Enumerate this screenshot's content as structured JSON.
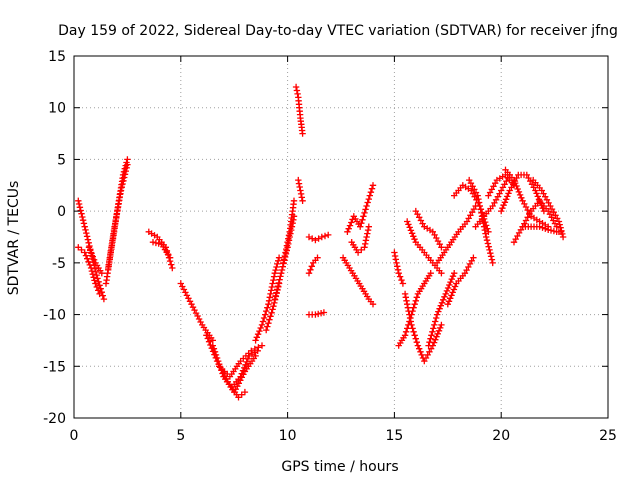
{
  "chart_data": {
    "type": "scatter",
    "title": "Day 159 of 2022, Sidereal Day-to-day VTEC variation (SDTVAR) for receiver jfng",
    "xlabel": "GPS time / hours",
    "ylabel": "SDTVAR / TECUs",
    "xlim": [
      0,
      25
    ],
    "ylim": [
      -20,
      15
    ],
    "xticks": [
      0,
      5,
      10,
      15,
      20,
      25
    ],
    "yticks": [
      -20,
      -15,
      -10,
      -5,
      0,
      5,
      10,
      15
    ],
    "xtick_labels": [
      "0",
      "5",
      "10",
      "15",
      "20",
      "25"
    ],
    "ytick_labels": [
      "-20",
      "-15",
      "-10",
      "-5",
      "0",
      "5",
      "10",
      "15"
    ],
    "grid": true,
    "marker": "plus",
    "color": "#ff0000",
    "tracks": [
      {
        "x": [
          0.2,
          0.5,
          0.8,
          1.1,
          1.4
        ],
        "y": [
          1.0,
          -1.5,
          -4.0,
          -6.5,
          -8.5
        ]
      },
      {
        "x": [
          0.2,
          0.5,
          0.8,
          1.0,
          1.2
        ],
        "y": [
          -3.5,
          -4.0,
          -5.5,
          -7.0,
          -8.0
        ]
      },
      {
        "x": [
          0.7,
          1.0,
          1.3
        ],
        "y": [
          -3.5,
          -5.0,
          -6.0
        ]
      },
      {
        "x": [
          1.5,
          1.8,
          2.1,
          2.3,
          2.5
        ],
        "y": [
          -7.0,
          -3.0,
          1.0,
          3.5,
          5.0
        ]
      },
      {
        "x": [
          1.6,
          1.9,
          2.2,
          2.5
        ],
        "y": [
          -5.5,
          -1.5,
          2.0,
          4.5
        ]
      },
      {
        "x": [
          3.5,
          3.9,
          4.3,
          4.6
        ],
        "y": [
          -2.0,
          -2.5,
          -3.5,
          -5.5
        ]
      },
      {
        "x": [
          3.7,
          4.1,
          4.5
        ],
        "y": [
          -3.0,
          -3.2,
          -4.5
        ]
      },
      {
        "x": [
          5.0,
          5.5,
          6.0,
          6.5
        ],
        "y": [
          -7.0,
          -9.0,
          -11.0,
          -12.5
        ]
      },
      {
        "x": [
          6.2,
          6.7,
          7.2,
          7.7,
          8.0
        ],
        "y": [
          -12.0,
          -14.5,
          -16.5,
          -18.0,
          -17.5
        ]
      },
      {
        "x": [
          6.5,
          7.0,
          7.5,
          8.0,
          8.5
        ],
        "y": [
          -13.0,
          -16.0,
          -17.5,
          -15.5,
          -14.0
        ]
      },
      {
        "x": [
          6.8,
          7.3,
          7.8,
          8.3,
          8.8
        ],
        "y": [
          -15.0,
          -16.0,
          -14.5,
          -13.5,
          -13.0
        ]
      },
      {
        "x": [
          7.4,
          7.8,
          8.2,
          8.6
        ],
        "y": [
          -17.0,
          -16.0,
          -14.0,
          -13.5
        ]
      },
      {
        "x": [
          8.5,
          8.8,
          9.1,
          9.4,
          9.6
        ],
        "y": [
          -12.5,
          -11.0,
          -9.0,
          -6.0,
          -4.5
        ]
      },
      {
        "x": [
          9.0,
          9.3,
          9.6
        ],
        "y": [
          -11.5,
          -9.5,
          -7.0
        ]
      },
      {
        "x": [
          9.4,
          9.7,
          10.0,
          10.3
        ],
        "y": [
          -8.5,
          -6.0,
          -3.5,
          -0.5
        ]
      },
      {
        "x": [
          9.8,
          10.1,
          10.3
        ],
        "y": [
          -5.0,
          -2.0,
          1.0
        ]
      },
      {
        "x": [
          10.4,
          10.5,
          10.6,
          10.7
        ],
        "y": [
          12.0,
          11.0,
          9.0,
          7.5
        ]
      },
      {
        "x": [
          10.5,
          10.6,
          10.7
        ],
        "y": [
          3.0,
          2.0,
          1.0
        ]
      },
      {
        "x": [
          11.0,
          11.3,
          11.6,
          11.9
        ],
        "y": [
          -2.5,
          -2.8,
          -2.5,
          -2.3
        ]
      },
      {
        "x": [
          11.0,
          11.3,
          11.7
        ],
        "y": [
          -10.0,
          -10.0,
          -9.8
        ]
      },
      {
        "x": [
          11.0,
          11.2,
          11.4
        ],
        "y": [
          -6.0,
          -5.0,
          -4.5
        ]
      },
      {
        "x": [
          12.6,
          12.9,
          13.2,
          13.5,
          13.8,
          14.0
        ],
        "y": [
          -4.5,
          -5.5,
          -6.5,
          -7.5,
          -8.5,
          -9.0
        ]
      },
      {
        "x": [
          12.8,
          13.1,
          13.4,
          13.7,
          14.0
        ],
        "y": [
          -2.0,
          -0.5,
          -1.5,
          0.5,
          2.5
        ]
      },
      {
        "x": [
          13.0,
          13.3,
          13.6,
          13.8
        ],
        "y": [
          -3.0,
          -4.0,
          -3.5,
          -1.5
        ]
      },
      {
        "x": [
          15.0,
          15.2,
          15.4
        ],
        "y": [
          -4.0,
          -6.0,
          -7.0
        ]
      },
      {
        "x": [
          15.2,
          15.5,
          15.8,
          16.1,
          16.4,
          16.7
        ],
        "y": [
          -13.0,
          -12.0,
          -10.0,
          -8.0,
          -7.0,
          -6.0
        ]
      },
      {
        "x": [
          15.5,
          15.8,
          16.1,
          16.4,
          16.8,
          17.2
        ],
        "y": [
          -8.0,
          -11.0,
          -13.0,
          -14.5,
          -13.0,
          -11.0
        ]
      },
      {
        "x": [
          15.6,
          16.0,
          16.4,
          16.8,
          17.2
        ],
        "y": [
          -1.0,
          -3.0,
          -4.0,
          -5.0,
          -6.0
        ]
      },
      {
        "x": [
          16.0,
          16.4,
          16.8,
          17.2
        ],
        "y": [
          0.0,
          -1.5,
          -2.0,
          -3.5
        ]
      },
      {
        "x": [
          16.6,
          17.0,
          17.4,
          17.8
        ],
        "y": [
          -13.0,
          -10.0,
          -8.0,
          -6.0
        ]
      },
      {
        "x": [
          17.0,
          17.5,
          18.0,
          18.4,
          18.8
        ],
        "y": [
          -5.0,
          -3.5,
          -2.0,
          -1.0,
          0.5
        ]
      },
      {
        "x": [
          17.5,
          17.9,
          18.3,
          18.7
        ],
        "y": [
          -9.0,
          -7.0,
          -6.0,
          -4.5
        ]
      },
      {
        "x": [
          17.8,
          18.2,
          18.6,
          19.0,
          19.4
        ],
        "y": [
          1.5,
          2.5,
          2.0,
          0.5,
          -2.0
        ]
      },
      {
        "x": [
          18.5,
          18.9,
          19.3,
          19.6
        ],
        "y": [
          3.0,
          1.5,
          -2.5,
          -5.0
        ]
      },
      {
        "x": [
          18.8,
          19.2,
          19.6,
          20.0,
          20.4
        ],
        "y": [
          -1.5,
          -0.5,
          0.5,
          2.0,
          3.5
        ]
      },
      {
        "x": [
          19.4,
          19.8,
          20.2,
          20.6
        ],
        "y": [
          1.5,
          3.0,
          3.5,
          2.5
        ]
      },
      {
        "x": [
          20.0,
          20.4,
          20.8,
          21.2,
          21.6,
          22.0
        ],
        "y": [
          0.0,
          2.0,
          3.5,
          3.5,
          2.0,
          0.0
        ]
      },
      {
        "x": [
          20.2,
          20.6,
          21.0,
          21.4,
          21.8,
          22.2
        ],
        "y": [
          4.0,
          3.0,
          1.0,
          -0.5,
          -1.0,
          -1.5
        ]
      },
      {
        "x": [
          20.6,
          21.0,
          21.4,
          21.8,
          22.2,
          22.6
        ],
        "y": [
          -3.0,
          -1.5,
          0.0,
          1.0,
          0.0,
          -1.5
        ]
      },
      {
        "x": [
          21.0,
          21.4,
          21.8,
          22.2,
          22.6,
          22.8
        ],
        "y": [
          -1.5,
          -1.5,
          -1.5,
          -1.8,
          -2.0,
          -2.0
        ]
      },
      {
        "x": [
          21.5,
          21.9,
          22.3,
          22.7,
          22.9
        ],
        "y": [
          3.0,
          2.0,
          0.5,
          -1.0,
          -2.5
        ]
      }
    ]
  }
}
